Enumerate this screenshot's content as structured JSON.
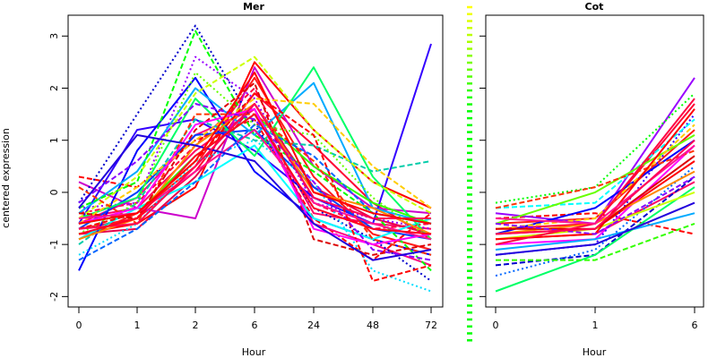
{
  "chart_data": [
    {
      "type": "line",
      "title": "Mer",
      "xlabel": "Hour",
      "ylabel": "centered expression",
      "categories": [
        "0",
        "1",
        "2",
        "6",
        "24",
        "48",
        "72"
      ],
      "ylim": [
        -2.2,
        3.4
      ],
      "yticks": [
        -2,
        -1,
        0,
        1,
        2,
        3
      ],
      "series": [
        {
          "values": [
            -0.8,
            -0.6,
            0.1,
            2.5,
            1.2,
            0.2,
            -0.3
          ],
          "color": "#ff0000",
          "lty": "solid"
        },
        {
          "values": [
            -0.7,
            -0.5,
            0.4,
            1.9,
            0.9,
            -0.2,
            -0.9
          ],
          "color": "#ff0033",
          "lty": "solid"
        },
        {
          "values": [
            -0.5,
            -0.3,
            0.8,
            1.6,
            -0.4,
            -0.6,
            -0.7
          ],
          "color": "#ff0066",
          "lty": "solid"
        },
        {
          "values": [
            -0.9,
            -0.4,
            0.5,
            2.2,
            0.3,
            -0.8,
            -1.1
          ],
          "color": "#ff1a1a",
          "lty": "solid"
        },
        {
          "values": [
            -0.4,
            -0.2,
            0.9,
            2.0,
            -0.2,
            -0.7,
            -0.6
          ],
          "color": "#ff0040",
          "lty": "dashed"
        },
        {
          "values": [
            0.3,
            0.1,
            1.0,
            1.4,
            -0.5,
            -1.3,
            -0.4
          ],
          "color": "#ff0000",
          "lty": "dashed"
        },
        {
          "values": [
            -0.8,
            -0.7,
            0.3,
            1.7,
            0.1,
            -0.5,
            -0.8
          ],
          "color": "#e6004c",
          "lty": "solid"
        },
        {
          "values": [
            -0.6,
            -0.1,
            1.1,
            1.6,
            -0.6,
            -1.0,
            -1.4
          ],
          "color": "#ff0080",
          "lty": "solid"
        },
        {
          "values": [
            0.2,
            -0.3,
            -0.5,
            2.4,
            0.5,
            -0.3,
            -0.4
          ],
          "color": "#cc00cc",
          "lty": "solid"
        },
        {
          "values": [
            -0.3,
            -0.2,
            2.6,
            1.8,
            -0.2,
            -0.5,
            -0.7
          ],
          "color": "#9900ff",
          "lty": "dotted"
        },
        {
          "values": [
            -0.6,
            1.2,
            1.4,
            0.8,
            -0.1,
            -0.6,
            2.85
          ],
          "color": "#3300ff",
          "lty": "solid"
        },
        {
          "values": [
            -1.5,
            0.8,
            2.2,
            0.4,
            -0.5,
            -0.9,
            -1.2
          ],
          "color": "#0000ff",
          "lty": "solid"
        },
        {
          "values": [
            -0.2,
            1.5,
            3.2,
            1.3,
            -0.3,
            -0.9,
            -1.7
          ],
          "color": "#0000cc",
          "lty": "dotted"
        },
        {
          "values": [
            -0.7,
            0.0,
            1.1,
            1.2,
            0.1,
            -0.7,
            -0.9
          ],
          "color": "#0040ff",
          "lty": "solid"
        },
        {
          "values": [
            -0.4,
            0.4,
            2.0,
            1.1,
            2.1,
            -0.3,
            -0.6
          ],
          "color": "#00aaff",
          "lty": "solid"
        },
        {
          "values": [
            -1.2,
            -0.6,
            0.6,
            1.0,
            0.2,
            -1.5,
            -1.9
          ],
          "color": "#00ddff",
          "lty": "dotted"
        },
        {
          "values": [
            -0.9,
            -0.3,
            0.2,
            0.9,
            -0.5,
            -0.9,
            -0.5
          ],
          "color": "#00ffff",
          "lty": "solid"
        },
        {
          "values": [
            -1.0,
            -0.2,
            1.4,
            1.0,
            0.9,
            0.4,
            0.6
          ],
          "color": "#00ccaa",
          "lty": "dashed"
        },
        {
          "values": [
            -0.5,
            -0.1,
            1.8,
            0.7,
            2.4,
            0.3,
            -0.9
          ],
          "color": "#00ff66",
          "lty": "solid"
        },
        {
          "values": [
            -0.3,
            0.2,
            3.1,
            1.1,
            0.4,
            -0.4,
            -1.5
          ],
          "color": "#00ff00",
          "lty": "dashed"
        },
        {
          "values": [
            -0.6,
            -0.4,
            0.7,
            1.5,
            0.5,
            -0.2,
            -0.6
          ],
          "color": "#33ff00",
          "lty": "solid"
        },
        {
          "values": [
            -0.8,
            -0.2,
            2.3,
            1.3,
            1.1,
            -0.1,
            -0.9
          ],
          "color": "#66ff00",
          "lty": "dotted"
        },
        {
          "values": [
            -0.5,
            0.3,
            1.9,
            2.6,
            1.2,
            0.2,
            -0.4
          ],
          "color": "#ccff00",
          "lty": "dashed"
        },
        {
          "values": [
            -0.6,
            0.1,
            1.0,
            1.8,
            1.7,
            0.5,
            -0.3
          ],
          "color": "#ffcc00",
          "lty": "dashed"
        },
        {
          "values": [
            -0.9,
            -0.5,
            0.9,
            1.7,
            0.0,
            -0.3,
            -0.8
          ],
          "color": "#ff8800",
          "lty": "solid"
        },
        {
          "values": [
            0.1,
            -0.6,
            1.5,
            1.5,
            0.6,
            -0.9,
            -1.2
          ],
          "color": "#ff3300",
          "lty": "dashed"
        },
        {
          "values": [
            -0.7,
            -0.4,
            0.6,
            1.9,
            1.1,
            -1.7,
            -1.4
          ],
          "color": "#ff0000",
          "lty": "dashed"
        },
        {
          "values": [
            -0.4,
            -0.5,
            1.2,
            2.1,
            -0.9,
            -1.2,
            -1.0
          ],
          "color": "#dd0000",
          "lty": "dashed"
        },
        {
          "values": [
            -0.6,
            -0.3,
            1.3,
            1.6,
            -0.7,
            -1.0,
            -0.8
          ],
          "color": "#ff00ff",
          "lty": "solid"
        },
        {
          "values": [
            -0.5,
            -0.4,
            0.4,
            1.2,
            -0.2,
            -0.6,
            -0.9
          ],
          "color": "#ff1493",
          "lty": "solid"
        },
        {
          "values": [
            -0.2,
            0.6,
            1.7,
            1.4,
            0.2,
            -1.1,
            -1.3
          ],
          "color": "#8800ff",
          "lty": "dashed"
        },
        {
          "values": [
            -1.3,
            -0.7,
            0.2,
            1.3,
            0.7,
            -0.4,
            -0.6
          ],
          "color": "#0066ff",
          "lty": "dashed"
        },
        {
          "values": [
            -0.3,
            1.1,
            0.9,
            0.6,
            -0.6,
            -1.3,
            -1.1
          ],
          "color": "#2200dd",
          "lty": "solid"
        },
        {
          "values": [
            -0.7,
            -0.6,
            0.5,
            1.7,
            -0.1,
            -0.5,
            -0.5
          ],
          "color": "#ff0055",
          "lty": "solid"
        },
        {
          "values": [
            -0.8,
            -0.5,
            0.7,
            1.5,
            -0.3,
            -0.7,
            -0.8
          ],
          "color": "#ff0022",
          "lty": "solid"
        },
        {
          "values": [
            -0.6,
            -0.4,
            0.6,
            2.3,
            0.0,
            -0.4,
            -0.6
          ],
          "color": "#ff0000",
          "lty": "solid"
        }
      ]
    },
    {
      "type": "line",
      "title": "Cot",
      "xlabel": "Hour",
      "ylabel": "",
      "categories": [
        "0",
        "1",
        "6"
      ],
      "ylim": [
        -2.2,
        3.4
      ],
      "series": [
        {
          "values": [
            -0.8,
            -0.7,
            0.6
          ],
          "color": "#ff0000",
          "lty": "solid"
        },
        {
          "values": [
            -0.7,
            -0.6,
            1.7
          ],
          "color": "#ff0033",
          "lty": "solid"
        },
        {
          "values": [
            -0.9,
            -0.8,
            0.2
          ],
          "color": "#ff0066",
          "lty": "solid"
        },
        {
          "values": [
            -0.6,
            -0.5,
            1.2
          ],
          "color": "#ff1a1a",
          "lty": "solid"
        },
        {
          "values": [
            -0.5,
            -0.4,
            -0.8
          ],
          "color": "#ff0000",
          "lty": "dashed"
        },
        {
          "values": [
            -1.0,
            -0.9,
            0.9
          ],
          "color": "#ff00ff",
          "lty": "solid"
        },
        {
          "values": [
            -0.4,
            -0.6,
            2.2
          ],
          "color": "#9900ff",
          "lty": "solid"
        },
        {
          "values": [
            -1.2,
            -1.0,
            1.5
          ],
          "color": "#3300ff",
          "lty": "dotted"
        },
        {
          "values": [
            -0.8,
            -0.3,
            1.0
          ],
          "color": "#0000ff",
          "lty": "solid"
        },
        {
          "values": [
            -1.4,
            -1.2,
            0.3
          ],
          "color": "#0000cc",
          "lty": "dashed"
        },
        {
          "values": [
            -1.6,
            -1.1,
            0.5
          ],
          "color": "#0066ff",
          "lty": "dotted"
        },
        {
          "values": [
            -1.1,
            -0.9,
            -0.4
          ],
          "color": "#00aaff",
          "lty": "solid"
        },
        {
          "values": [
            -0.3,
            -0.2,
            1.4
          ],
          "color": "#00ffff",
          "lty": "dashed"
        },
        {
          "values": [
            -1.9,
            -1.2,
            0.1
          ],
          "color": "#00ff66",
          "lty": "solid"
        },
        {
          "values": [
            -0.2,
            0.1,
            1.9
          ],
          "color": "#00ff00",
          "lty": "dotted"
        },
        {
          "values": [
            -1.3,
            -1.3,
            -0.6
          ],
          "color": "#33ff00",
          "lty": "dashed"
        },
        {
          "values": [
            -0.6,
            0.0,
            1.1
          ],
          "color": "#66ff00",
          "lty": "solid"
        },
        {
          "values": [
            -0.9,
            -0.7,
            0.0
          ],
          "color": "#ccff00",
          "lty": "solid"
        },
        {
          "values": [
            -0.7,
            -0.5,
            1.3
          ],
          "color": "#ffcc00",
          "lty": "dashed"
        },
        {
          "values": [
            -0.8,
            -0.6,
            0.4
          ],
          "color": "#ff8800",
          "lty": "solid"
        },
        {
          "values": [
            -0.3,
            0.1,
            0.8
          ],
          "color": "#ff3300",
          "lty": "dashed"
        },
        {
          "values": [
            -0.9,
            -0.8,
            1.6
          ],
          "color": "#ff0000",
          "lty": "solid"
        },
        {
          "values": [
            -0.7,
            -0.7,
            0.7
          ],
          "color": "#dd0000",
          "lty": "solid"
        },
        {
          "values": [
            -1.0,
            -0.6,
            1.8
          ],
          "color": "#ff0044",
          "lty": "solid"
        },
        {
          "values": [
            -0.5,
            -0.6,
            0.9
          ],
          "color": "#ff1493",
          "lty": "solid"
        },
        {
          "values": [
            -0.6,
            -0.8,
            0.3
          ],
          "color": "#8800ff",
          "lty": "dashed"
        },
        {
          "values": [
            -1.2,
            -1.0,
            -0.2
          ],
          "color": "#2200dd",
          "lty": "solid"
        },
        {
          "values": [
            -0.8,
            -0.7,
            1.0
          ],
          "color": "#ff0055",
          "lty": "solid"
        }
      ]
    }
  ],
  "legend_strip": {
    "colors": [
      "#ffff00",
      "#eeff00",
      "#ddff00",
      "#ccff00",
      "#bbff00",
      "#aaff00",
      "#99ff00",
      "#88ff00",
      "#77ff00",
      "#66ff00",
      "#55ff00",
      "#44ff00",
      "#33ff00",
      "#22ff00",
      "#11ff00",
      "#00ff00",
      "#00ff00",
      "#00ff00",
      "#00ff00",
      "#00ff00",
      "#00ff00",
      "#00ff00",
      "#00ff00",
      "#00ff00",
      "#00ff00",
      "#00ff00",
      "#00ff00",
      "#00ff00",
      "#00ff00",
      "#00ff00",
      "#00ff00",
      "#00ff00",
      "#00ff00",
      "#00ff00",
      "#00ff00",
      "#00ff00",
      "#00ff00",
      "#00ff00",
      "#00ff00",
      "#00ff00",
      "#00ff00",
      "#00ff00",
      "#00ff00",
      "#00ff00",
      "#00ff00",
      "#00ff00",
      "#00ff00",
      "#00ff00",
      "#00ff00"
    ]
  }
}
